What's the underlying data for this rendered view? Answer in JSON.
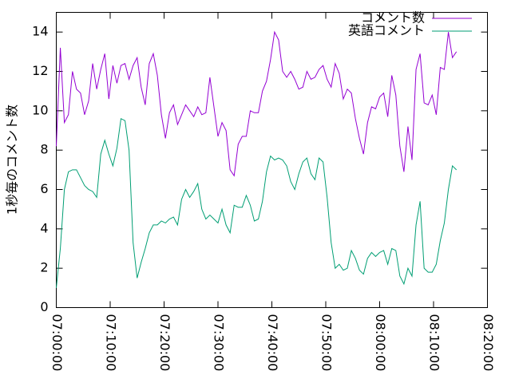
{
  "chart_data": {
    "type": "line",
    "ylabel": "1秒毎のコメント数",
    "x": [
      "07:00:00",
      "07:00:45",
      "07:01:30",
      "07:02:15",
      "07:03:00",
      "07:03:45",
      "07:04:30",
      "07:05:15",
      "07:06:00",
      "07:06:45",
      "07:07:30",
      "07:08:15",
      "07:09:00",
      "07:09:45",
      "07:10:30",
      "07:11:15",
      "07:12:00",
      "07:12:45",
      "07:13:30",
      "07:14:15",
      "07:15:00",
      "07:15:45",
      "07:16:30",
      "07:17:15",
      "07:18:00",
      "07:18:45",
      "07:19:30",
      "07:20:15",
      "07:21:00",
      "07:21:45",
      "07:22:30",
      "07:23:15",
      "07:24:00",
      "07:24:45",
      "07:25:30",
      "07:26:15",
      "07:27:00",
      "07:27:45",
      "07:28:30",
      "07:29:15",
      "07:30:00",
      "07:30:45",
      "07:31:30",
      "07:32:15",
      "07:33:00",
      "07:33:45",
      "07:34:30",
      "07:35:15",
      "07:36:00",
      "07:36:45",
      "07:37:30",
      "07:38:15",
      "07:39:00",
      "07:39:45",
      "07:40:30",
      "07:41:15",
      "07:42:00",
      "07:42:45",
      "07:43:30",
      "07:44:15",
      "07:45:00",
      "07:45:45",
      "07:46:30",
      "07:47:15",
      "07:48:00",
      "07:48:45",
      "07:49:30",
      "07:50:15",
      "07:51:00",
      "07:51:45",
      "07:52:30",
      "07:53:15",
      "07:54:00",
      "07:54:45",
      "07:55:30",
      "07:56:15",
      "07:57:00",
      "07:57:45",
      "07:58:30",
      "07:59:15",
      "08:00:00",
      "08:00:45",
      "08:01:30",
      "08:02:15",
      "08:03:00",
      "08:03:45",
      "08:04:30",
      "08:05:15",
      "08:06:00",
      "08:06:45",
      "08:07:30",
      "08:08:15",
      "08:09:00",
      "08:09:45",
      "08:10:30",
      "08:11:15",
      "08:12:00",
      "08:12:45",
      "08:13:30",
      "08:14:15"
    ],
    "series": [
      {
        "name": "コメント数",
        "color": "#9400d3",
        "values": [
          8.2,
          13.2,
          9.4,
          9.8,
          12,
          11.1,
          10.9,
          9.8,
          10.5,
          12.4,
          11.1,
          12.1,
          12.9,
          10.6,
          12.3,
          11.4,
          12.3,
          12.4,
          11.6,
          12.3,
          12.7,
          11.2,
          10.3,
          12.4,
          12.9,
          11.8,
          9.8,
          8.6,
          9.9,
          10.3,
          9.3,
          9.8,
          10.3,
          10.0,
          9.7,
          10.2,
          9.8,
          9.9,
          11.7,
          10.2,
          8.7,
          9.4,
          9.0,
          7.0,
          6.7,
          8.3,
          8.7,
          8.7,
          10.0,
          9.9,
          9.9,
          11.0,
          11.5,
          12.6,
          14.0,
          13.6,
          12.0,
          11.7,
          12.0,
          11.6,
          11.1,
          11.2,
          12.0,
          11.6,
          11.7,
          12.1,
          12.3,
          11.6,
          11.2,
          12.4,
          11.9,
          10.6,
          11.1,
          10.9,
          9.6,
          8.6,
          7.8,
          9.4,
          10.2,
          10.1,
          10.7,
          10.9,
          9.7,
          11.8,
          10.8,
          8.2,
          6.9,
          9.2,
          7.5,
          12.1,
          12.9,
          10.4,
          10.3,
          10.8,
          9.8,
          12.2,
          12.1,
          14.0,
          12.7,
          13.0
        ]
      },
      {
        "name": "英語コメント",
        "color": "#009e73",
        "values": [
          1.0,
          3.0,
          6.0,
          6.9,
          7.0,
          7.0,
          6.6,
          6.2,
          6.0,
          5.9,
          5.6,
          7.8,
          8.5,
          7.8,
          7.2,
          8.1,
          9.6,
          9.5,
          8.0,
          3.3,
          1.5,
          2.3,
          3.0,
          3.8,
          4.2,
          4.2,
          4.4,
          4.3,
          4.5,
          4.6,
          4.2,
          5.5,
          6.0,
          5.6,
          5.9,
          6.3,
          5.0,
          4.5,
          4.7,
          4.5,
          4.3,
          5.0,
          4.2,
          3.8,
          5.2,
          5.1,
          5.1,
          5.7,
          5.2,
          4.4,
          4.5,
          5.4,
          6.9,
          7.7,
          7.5,
          7.6,
          7.5,
          7.2,
          6.4,
          6.0,
          6.8,
          7.4,
          7.6,
          6.8,
          6.5,
          7.6,
          7.4,
          5.6,
          3.3,
          2.0,
          2.2,
          1.9,
          2.0,
          2.9,
          2.5,
          1.9,
          1.7,
          2.5,
          2.8,
          2.6,
          2.8,
          2.9,
          2.2,
          3.0,
          2.9,
          1.6,
          1.2,
          2.0,
          1.6,
          4.2,
          5.4,
          2.0,
          1.8,
          1.8,
          2.2,
          3.4,
          4.3,
          6.0,
          7.2,
          7.0
        ]
      }
    ],
    "xlim": [
      "07:00:00",
      "08:20:00"
    ],
    "xticks": [
      "07:00:00",
      "07:10:00",
      "07:20:00",
      "07:30:00",
      "07:40:00",
      "07:50:00",
      "08:00:00",
      "08:10:00",
      "08:20:00"
    ],
    "ylim": [
      0,
      15
    ],
    "yticks": [
      0,
      2,
      4,
      6,
      8,
      10,
      12,
      14
    ],
    "legend": "top-right"
  }
}
